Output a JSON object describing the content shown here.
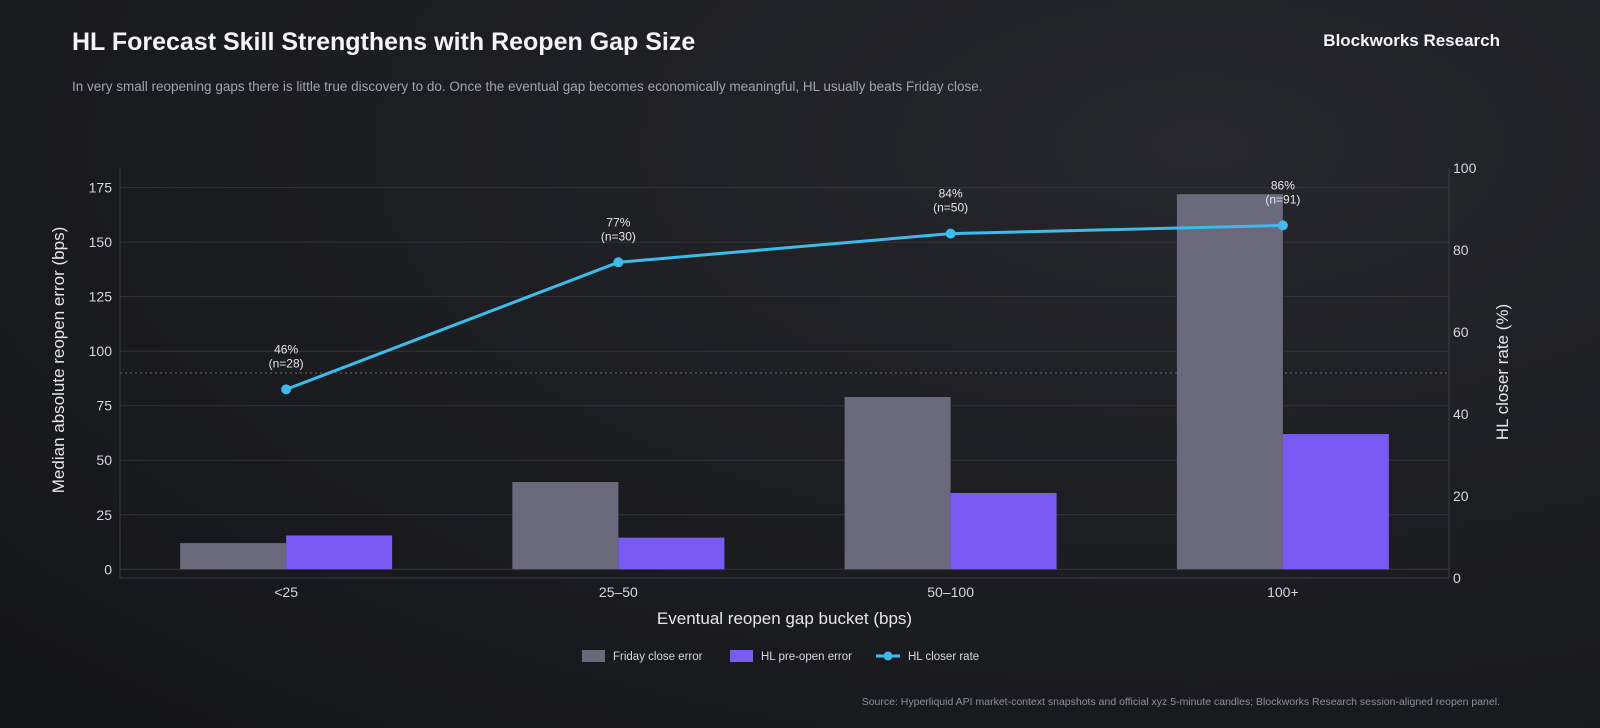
{
  "header": {
    "title": "HL Forecast Skill Strengthens with Reopen Gap Size",
    "subtitle": "In very small reopening gaps there is little true discovery to do. Once the eventual gap becomes economically meaningful, HL usually beats Friday close.",
    "brand": "Blockworks Research"
  },
  "footer": {
    "source": "Source: Hyperliquid API market-context snapshots and official xyz 5-minute candles; Blockworks Research session-aligned reopen panel."
  },
  "colors": {
    "friday": "#6b6a7c",
    "hl": "#7a5af5",
    "line": "#3dbcec",
    "grid": "#34353b",
    "reference": "#6a6b72"
  },
  "chart_data": {
    "type": "bar",
    "categories": [
      "<25",
      "25–50",
      "50–100",
      "100+"
    ],
    "series": [
      {
        "name": "Friday close error",
        "axis": "left",
        "type": "bar",
        "values": [
          12,
          40,
          79,
          172
        ]
      },
      {
        "name": "HL pre-open error",
        "axis": "left",
        "type": "bar",
        "values": [
          15.5,
          14.5,
          35,
          62
        ]
      },
      {
        "name": "HL closer rate",
        "axis": "right",
        "type": "line",
        "values": [
          46,
          77,
          84,
          86
        ]
      }
    ],
    "annotations": [
      {
        "pct": "46%",
        "n": "(n=28)"
      },
      {
        "pct": "77%",
        "n": "(n=30)"
      },
      {
        "pct": "84%",
        "n": "(n=50)"
      },
      {
        "pct": "86%",
        "n": "(n=91)"
      }
    ],
    "xlabel": "Eventual reopen gap bucket (bps)",
    "ylabel": "Median absolute reopen error (bps)",
    "y2label": "HL closer rate (%)",
    "ylim": [
      -4,
      184
    ],
    "yticks": [
      0,
      25,
      50,
      75,
      100,
      125,
      150,
      175
    ],
    "y2lim": [
      0,
      100
    ],
    "y2ticks": [
      0,
      20,
      40,
      60,
      80,
      100
    ],
    "reference_line_right": 50,
    "legend_position": "bottom-center",
    "grid": true
  }
}
